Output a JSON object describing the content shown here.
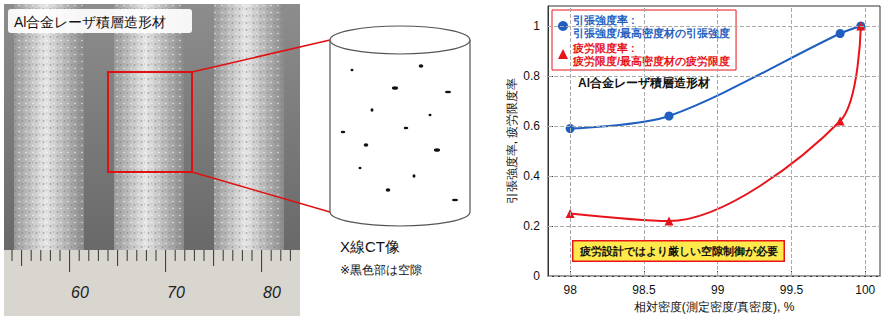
{
  "photo": {
    "label": "Al合金レーザ積層造形材",
    "ruler_labels": [
      60,
      70,
      80
    ]
  },
  "ct_image": {
    "title": "X線CT像",
    "note": "※黒色部は空隙"
  },
  "chart_data": {
    "type": "line",
    "x_label": "相対密度(測定密度/真密度), %",
    "y_label": "引張強度率, 疲労限度率",
    "xlim": [
      97.85,
      100.1
    ],
    "xticks": [
      98,
      98.5,
      99,
      99.5,
      100
    ],
    "ylim": [
      0,
      1.08
    ],
    "yticks": [
      0,
      0.2,
      0.4,
      0.6,
      0.8,
      1
    ],
    "grid": true,
    "legend": "upper left",
    "annotations": [
      "Al合金レーザ積層造形材",
      "疲労設計ではより厳しい空隙制御が必要"
    ],
    "series": [
      {
        "name": "引張強度率 : 引張強度/最高密度材の引張強度",
        "color": "#1f5fbf",
        "marker": "circle",
        "x": [
          98,
          98.67,
          99.83,
          99.97
        ],
        "values": [
          0.59,
          0.64,
          0.97,
          1.0
        ]
      },
      {
        "name": "疲労限度率 : 疲労限度/最高密度材の疲労限度",
        "color": "#e8141b",
        "marker": "triangle",
        "x": [
          98,
          98.67,
          99.83,
          99.97
        ],
        "values": [
          0.25,
          0.22,
          0.62,
          1.0
        ]
      }
    ]
  }
}
